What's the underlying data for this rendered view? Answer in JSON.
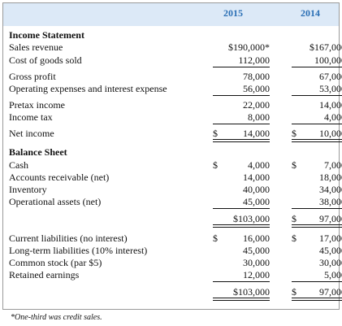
{
  "columns": {
    "year1": "2015",
    "year2": "2014"
  },
  "income_statement": {
    "title": "Income Statement",
    "rows": [
      {
        "label": "Sales revenue",
        "y2015": "$190,000*",
        "y2014": "$167,000"
      },
      {
        "label": "Cost of goods sold",
        "y2015": "112,000",
        "y2014": "100,000"
      },
      {
        "label": "Gross profit",
        "y2015": "78,000",
        "y2014": "67,000"
      },
      {
        "label": "Operating expenses and interest expense",
        "y2015": "56,000",
        "y2014": "53,000"
      },
      {
        "label": "Pretax income",
        "y2015": "22,000",
        "y2014": "14,000"
      },
      {
        "label": "Income tax",
        "y2015": "8,000",
        "y2014": "4,000"
      },
      {
        "label": "Net income",
        "y2015_cur": "$",
        "y2015": "14,000",
        "y2014_cur": "$",
        "y2014": "10,000"
      }
    ]
  },
  "balance_sheet": {
    "title": "Balance Sheet",
    "assets": [
      {
        "label": "Cash",
        "y2015_cur": "$",
        "y2015": "4,000",
        "y2014_cur": "$",
        "y2014": "7,000"
      },
      {
        "label": "Accounts receivable (net)",
        "y2015": "14,000",
        "y2014": "18,000"
      },
      {
        "label": "Inventory",
        "y2015": "40,000",
        "y2014": "34,000"
      },
      {
        "label": "Operational assets (net)",
        "y2015": "45,000",
        "y2014": "38,000"
      }
    ],
    "total_assets": {
      "y2015": "$103,000",
      "y2014_cur": "$",
      "y2014": "97,000"
    },
    "liabilities_equity": [
      {
        "label": "Current liabilities (no interest)",
        "y2015_cur": "$",
        "y2015": "16,000",
        "y2014_cur": "$",
        "y2014": "17,000"
      },
      {
        "label": "Long-term liabilities (10% interest)",
        "y2015": "45,000",
        "y2014": "45,000"
      },
      {
        "label": "Common stock (par $5)",
        "y2015": "30,000",
        "y2014": "30,000"
      },
      {
        "label": "Retained earnings",
        "y2015": "12,000",
        "y2014": "5,000"
      }
    ],
    "total_liabilities_equity": {
      "y2015": "$103,000",
      "y2014_cur": "$",
      "y2014": "97,000"
    }
  },
  "footnote": "*One-third was credit sales."
}
